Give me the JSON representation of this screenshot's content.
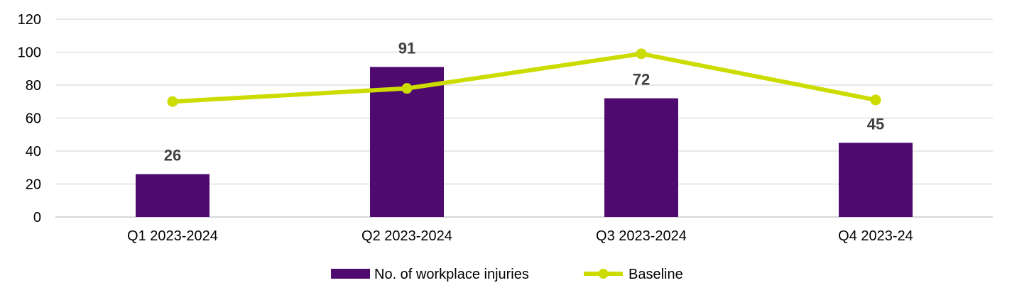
{
  "chart_data": {
    "type": "bar",
    "categories": [
      "Q1 2023-2024",
      "Q2 2023-2024",
      "Q3 2023-2024",
      "Q4 2023-24"
    ],
    "series": [
      {
        "name": "No. of workplace injuries",
        "type": "bar",
        "values": [
          26,
          91,
          72,
          45
        ],
        "color": "#4F0A70",
        "data_labels": [
          "26",
          "91",
          "72",
          "45"
        ]
      },
      {
        "name": "Baseline",
        "type": "line",
        "values": [
          70,
          78,
          99,
          71
        ],
        "color": "#CDDC00"
      }
    ],
    "title": "",
    "xlabel": "",
    "ylabel": "",
    "ylim": [
      0,
      120
    ],
    "yticks": [
      "0",
      "20",
      "40",
      "60",
      "80",
      "100",
      "120"
    ],
    "grid": true,
    "legend": "bottom-center"
  }
}
